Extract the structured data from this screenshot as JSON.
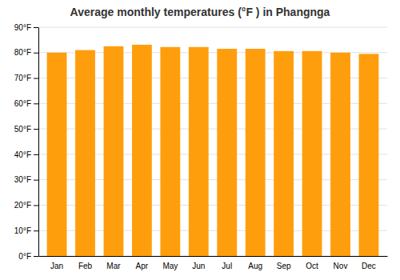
{
  "chart_data": {
    "type": "bar",
    "title": "Average monthly temperatures (°F ) in Phangnga",
    "categories": [
      "Jan",
      "Feb",
      "Mar",
      "Apr",
      "May",
      "Jun",
      "Jul",
      "Aug",
      "Sep",
      "Oct",
      "Nov",
      "Dec"
    ],
    "values": [
      80.0,
      81.0,
      82.5,
      83.1,
      82.2,
      82.2,
      81.5,
      81.5,
      80.6,
      80.6,
      80.0,
      79.5
    ],
    "color": "#ff9e0d",
    "ylim": [
      0,
      90
    ],
    "yticks": [
      {
        "value": 0,
        "label": "0°F"
      },
      {
        "value": 10,
        "label": "10°F"
      },
      {
        "value": 20,
        "label": "20°F"
      },
      {
        "value": 30,
        "label": "30°F"
      },
      {
        "value": 40,
        "label": "40°F"
      },
      {
        "value": 50,
        "label": "50°F"
      },
      {
        "value": 60,
        "label": "60°F"
      },
      {
        "value": 70,
        "label": "70°F"
      },
      {
        "value": 80,
        "label": "80°F"
      },
      {
        "value": 90,
        "label": "90°F"
      }
    ],
    "grid": true
  }
}
